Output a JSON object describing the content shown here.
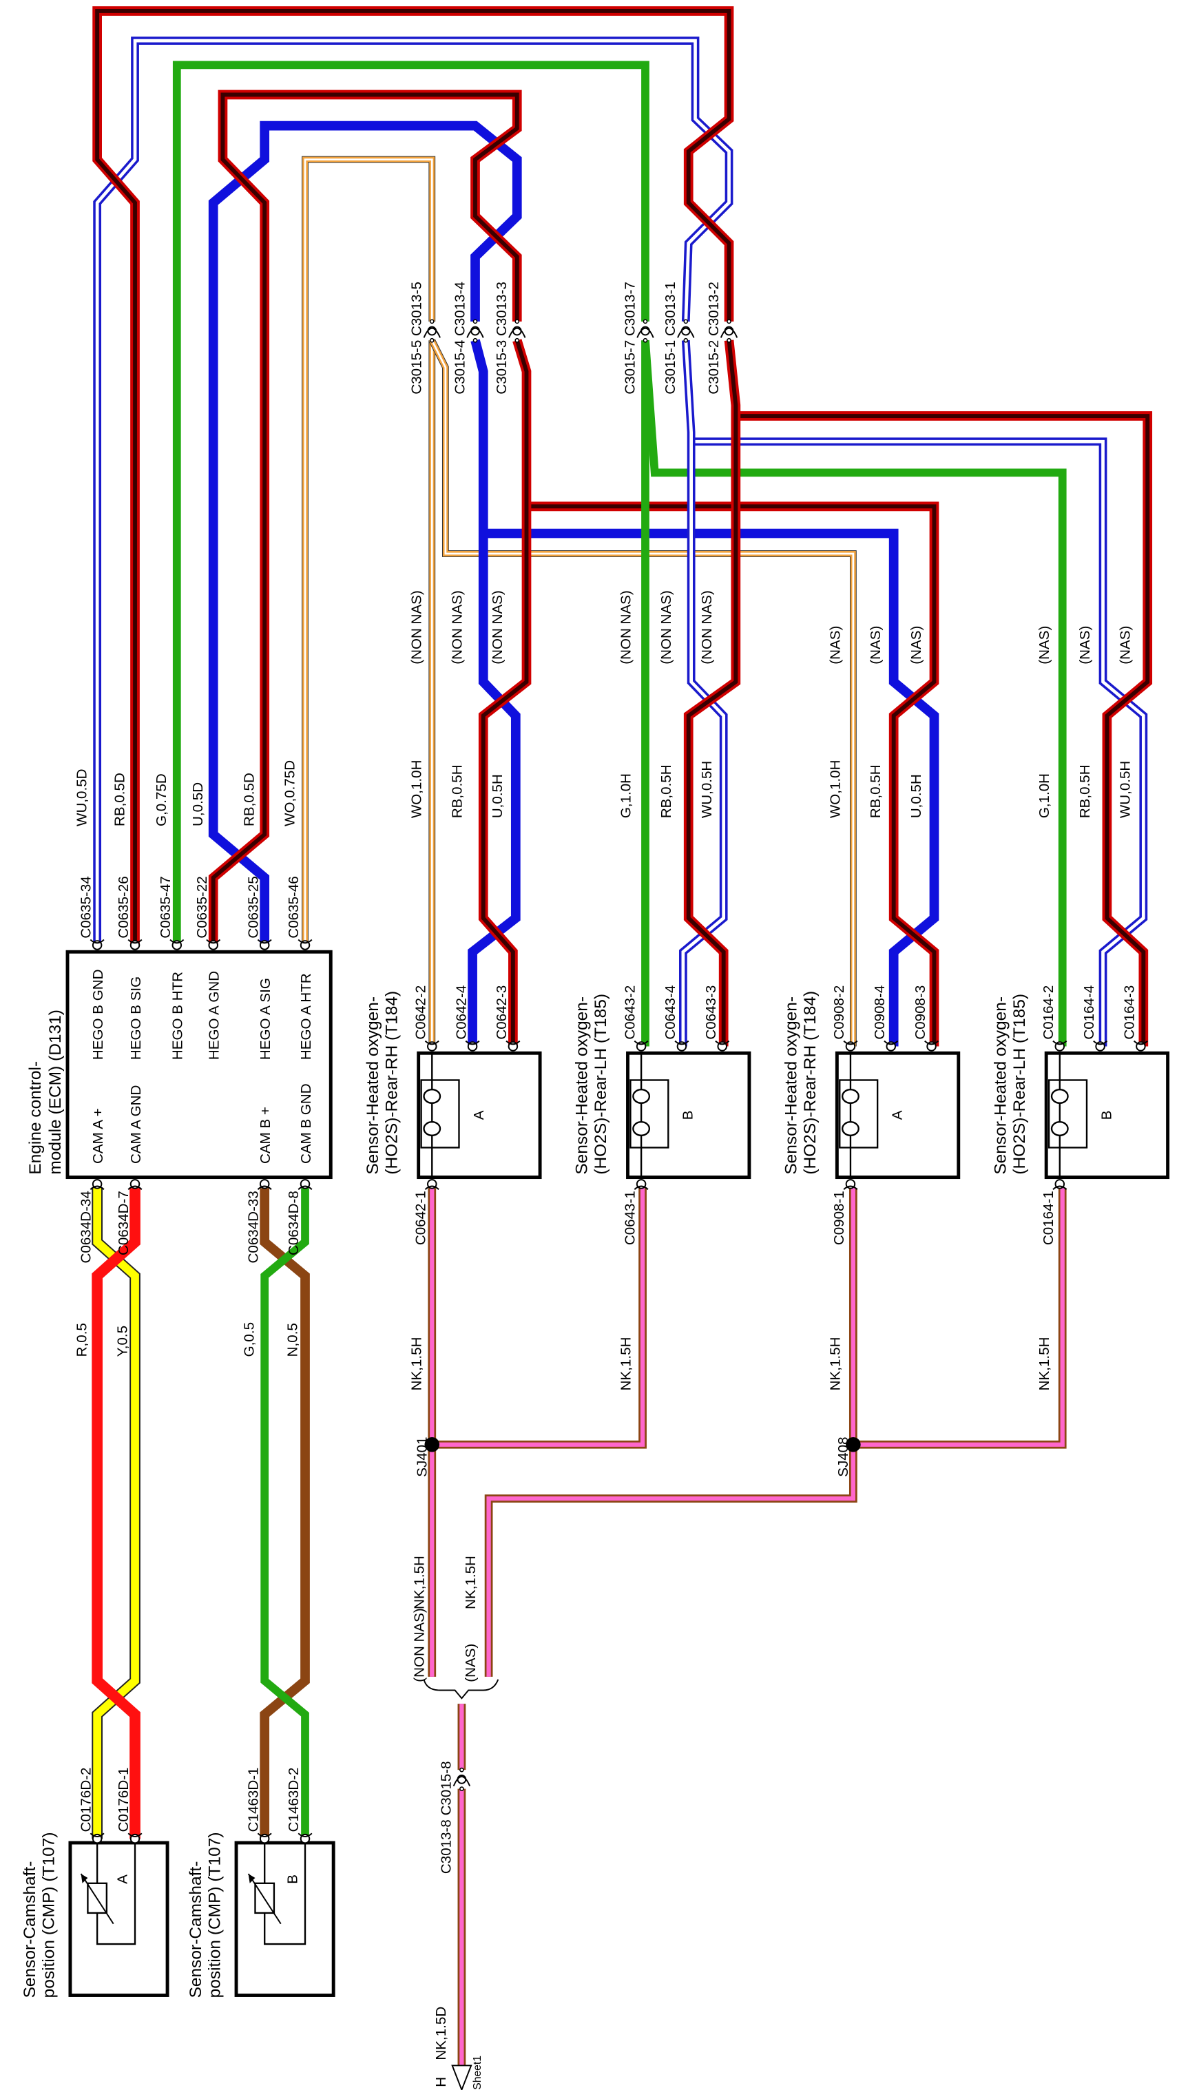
{
  "wire_colors": {
    "RB": [
      "#d00000",
      "#3a0000"
    ],
    "WU": [
      "#1a1acc",
      "#ffffff"
    ],
    "G": [
      "#22aa11"
    ],
    "U": [
      "#1010dd"
    ],
    "WO": [
      "#f2a23c",
      "#ffffff"
    ],
    "R": [
      "#ff1010"
    ],
    "Y": [
      "#ffff00"
    ],
    "N": [
      "#8b4513"
    ],
    "NK": [
      "#8b4513",
      "#ff66cc"
    ]
  },
  "ecm": {
    "title1": "Engine control-",
    "title2": "module (ECM) (D131)",
    "top_pins": [
      {
        "connector": "C0635-34",
        "wire": "WU,0.5D",
        "function": "HEGO B GND"
      },
      {
        "connector": "C0635-26",
        "wire": "RB,0.5D",
        "function": "HEGO B SIG"
      },
      {
        "connector": "C0635-47",
        "wire": "G,0.75D",
        "function": "HEGO B HTR"
      },
      {
        "connector": "C0635-22",
        "wire": "U,0.5D",
        "function": "HEGO A GND"
      },
      {
        "connector": "C0635-25",
        "wire": "RB,0.5D",
        "function": "HEGO A SIG"
      },
      {
        "connector": "C0635-46",
        "wire": "WO,0.75D",
        "function": "HEGO A HTR"
      }
    ],
    "bottom_pins": [
      {
        "connector": "C0634D-34",
        "function": "CAM A +"
      },
      {
        "connector": "C0634D-7",
        "function": "CAM A GND"
      },
      {
        "connector": "C0634D-33",
        "function": "CAM B +"
      },
      {
        "connector": "C0634D-8",
        "function": "CAM B GND"
      }
    ]
  },
  "cmp_sensors": [
    {
      "title1": "Sensor-Camshaft-",
      "title2": "position (CMP) (T107)",
      "letter": "A",
      "pins": [
        "C0176D-2",
        "C0176D-1"
      ],
      "wires": [
        "R,0.5",
        "Y,0.5"
      ]
    },
    {
      "title1": "Sensor-Camshaft-",
      "title2": "position (CMP) (T107)",
      "letter": "B",
      "pins": [
        "C1463D-1",
        "C1463D-2"
      ],
      "wires": [
        "G,0.5",
        "N,0.5"
      ]
    }
  ],
  "o2_sensors": [
    {
      "title1": "Sensor-Heated oxygen-",
      "title2": "(HO2S)-Rear-RH (T184)",
      "letter": "A",
      "top_pins": [
        {
          "connector": "C0642-2",
          "wire": "WO,1.0H",
          "variant": "(NON NAS)"
        },
        {
          "connector": "C0642-4",
          "wire": "RB,0.5H",
          "variant": "(NON NAS)"
        },
        {
          "connector": "C0642-3",
          "wire": "U,0.5H",
          "variant": "(NON NAS)"
        }
      ],
      "bottom_pin": {
        "connector": "C0642-1",
        "wire": "NK,1.5H"
      }
    },
    {
      "title1": "Sensor-Heated oxygen-",
      "title2": "(HO2S)-Rear-LH (T185)",
      "letter": "B",
      "top_pins": [
        {
          "connector": "C0643-2",
          "wire": "G,1.0H",
          "variant": "(NON NAS)"
        },
        {
          "connector": "C0643-4",
          "wire": "RB,0.5H",
          "variant": "(NON NAS)"
        },
        {
          "connector": "C0643-3",
          "wire": "WU,0.5H",
          "variant": "(NON NAS)"
        }
      ],
      "bottom_pin": {
        "connector": "C0643-1",
        "wire": "NK,1.5H"
      }
    },
    {
      "title1": "Sensor-Heated oxygen-",
      "title2": "(HO2S)-Rear-RH (T184)",
      "letter": "A",
      "top_pins": [
        {
          "connector": "C0908-2",
          "wire": "WO,1.0H",
          "variant": "(NAS)"
        },
        {
          "connector": "C0908-4",
          "wire": "RB,0.5H",
          "variant": "(NAS)"
        },
        {
          "connector": "C0908-3",
          "wire": "U,0.5H",
          "variant": "(NAS)"
        }
      ],
      "bottom_pin": {
        "connector": "C0908-1",
        "wire": "NK,1.5H"
      }
    },
    {
      "title1": "Sensor-Heated oxygen-",
      "title2": "(HO2S)-Rear-LH (T185)",
      "letter": "B",
      "top_pins": [
        {
          "connector": "C0164-2",
          "wire": "G,1.0H",
          "variant": "(NAS)"
        },
        {
          "connector": "C0164-4",
          "wire": "RB,0.5H",
          "variant": "(NAS)"
        },
        {
          "connector": "C0164-3",
          "wire": "WU,0.5H",
          "variant": "(NAS)"
        }
      ],
      "bottom_pin": {
        "connector": "C0164-1",
        "wire": "NK,1.5H"
      }
    }
  ],
  "inline_connectors": [
    "C3015-5 C3013-5",
    "C3015-4 C3013-4",
    "C3015-3 C3013-3",
    "C3015-7 C3013-7",
    "C3015-1 C3013-1",
    "C3015-2 C3013-2"
  ],
  "splices": [
    "SJ401",
    "SJ408"
  ],
  "ground": {
    "non_nas_label": "(NON NAS)",
    "non_nas_wire": "NK,1.5H",
    "nas_label": "(NAS)",
    "nas_wire": "NK,1.5H",
    "connector": "C3013-8 C3015-8",
    "wire_out": "NK,1.5D",
    "ref": "H",
    "sheet": "Sheet1"
  }
}
